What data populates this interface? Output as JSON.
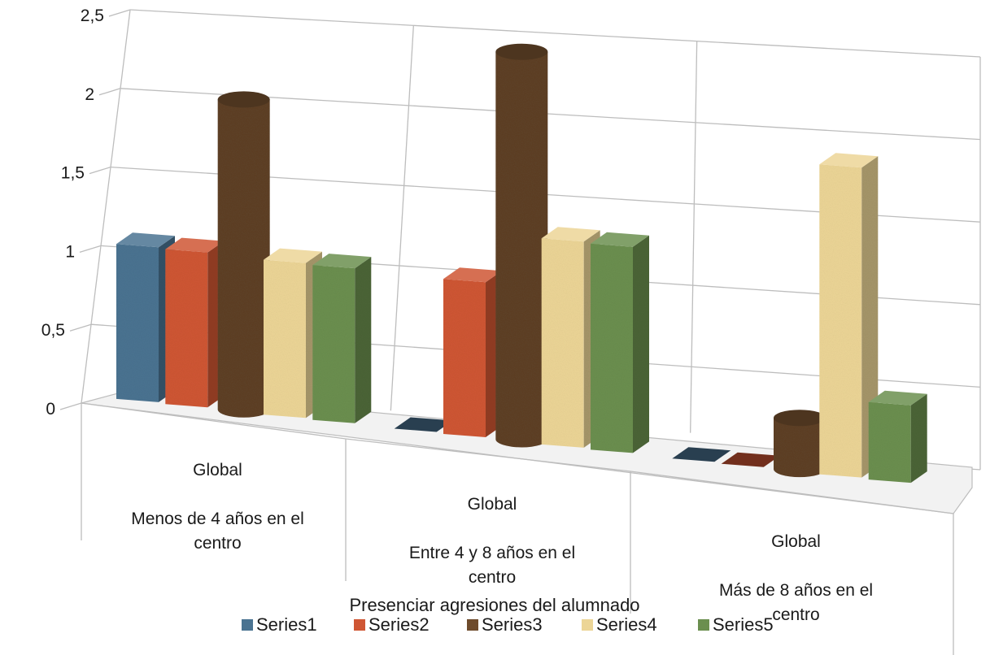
{
  "chart_data": {
    "type": "bar",
    "subtype": "3d-clustered-column",
    "title": "",
    "xlabel": "Presenciar agresiones del alumnado",
    "ylabel": "",
    "ylim": [
      0,
      2.5
    ],
    "yticks": [
      "0",
      "0,5",
      "1",
      "1,5",
      "2",
      "2,5"
    ],
    "categories": [
      {
        "line1": "Global",
        "line2": "Menos de 4 años en el",
        "line3": "centro"
      },
      {
        "line1": "Global",
        "line2": "Entre 4 y 8 años en el",
        "line3": "centro"
      },
      {
        "line1": "Global",
        "line2": "Más de 8 años en el",
        "line3": "centro"
      }
    ],
    "series": [
      {
        "name": "Series1",
        "color": "#4a7391",
        "shape": "box",
        "values": [
          1.0,
          0.0,
          0.0
        ]
      },
      {
        "name": "Series2",
        "color": "#cf5634",
        "shape": "box",
        "values": [
          1.0,
          1.0,
          0.0
        ]
      },
      {
        "name": "Series3",
        "color": "#6e4b2c",
        "shape": "cylinder",
        "values": [
          2.0,
          2.5,
          0.33
        ]
      },
      {
        "name": "Series4",
        "color": "#ecd596",
        "shape": "box",
        "values": [
          1.0,
          1.33,
          2.0
        ]
      },
      {
        "name": "Series5",
        "color": "#6b8f4f",
        "shape": "box",
        "values": [
          1.0,
          1.33,
          0.5
        ]
      }
    ],
    "grid": true,
    "legend_position": "bottom"
  }
}
